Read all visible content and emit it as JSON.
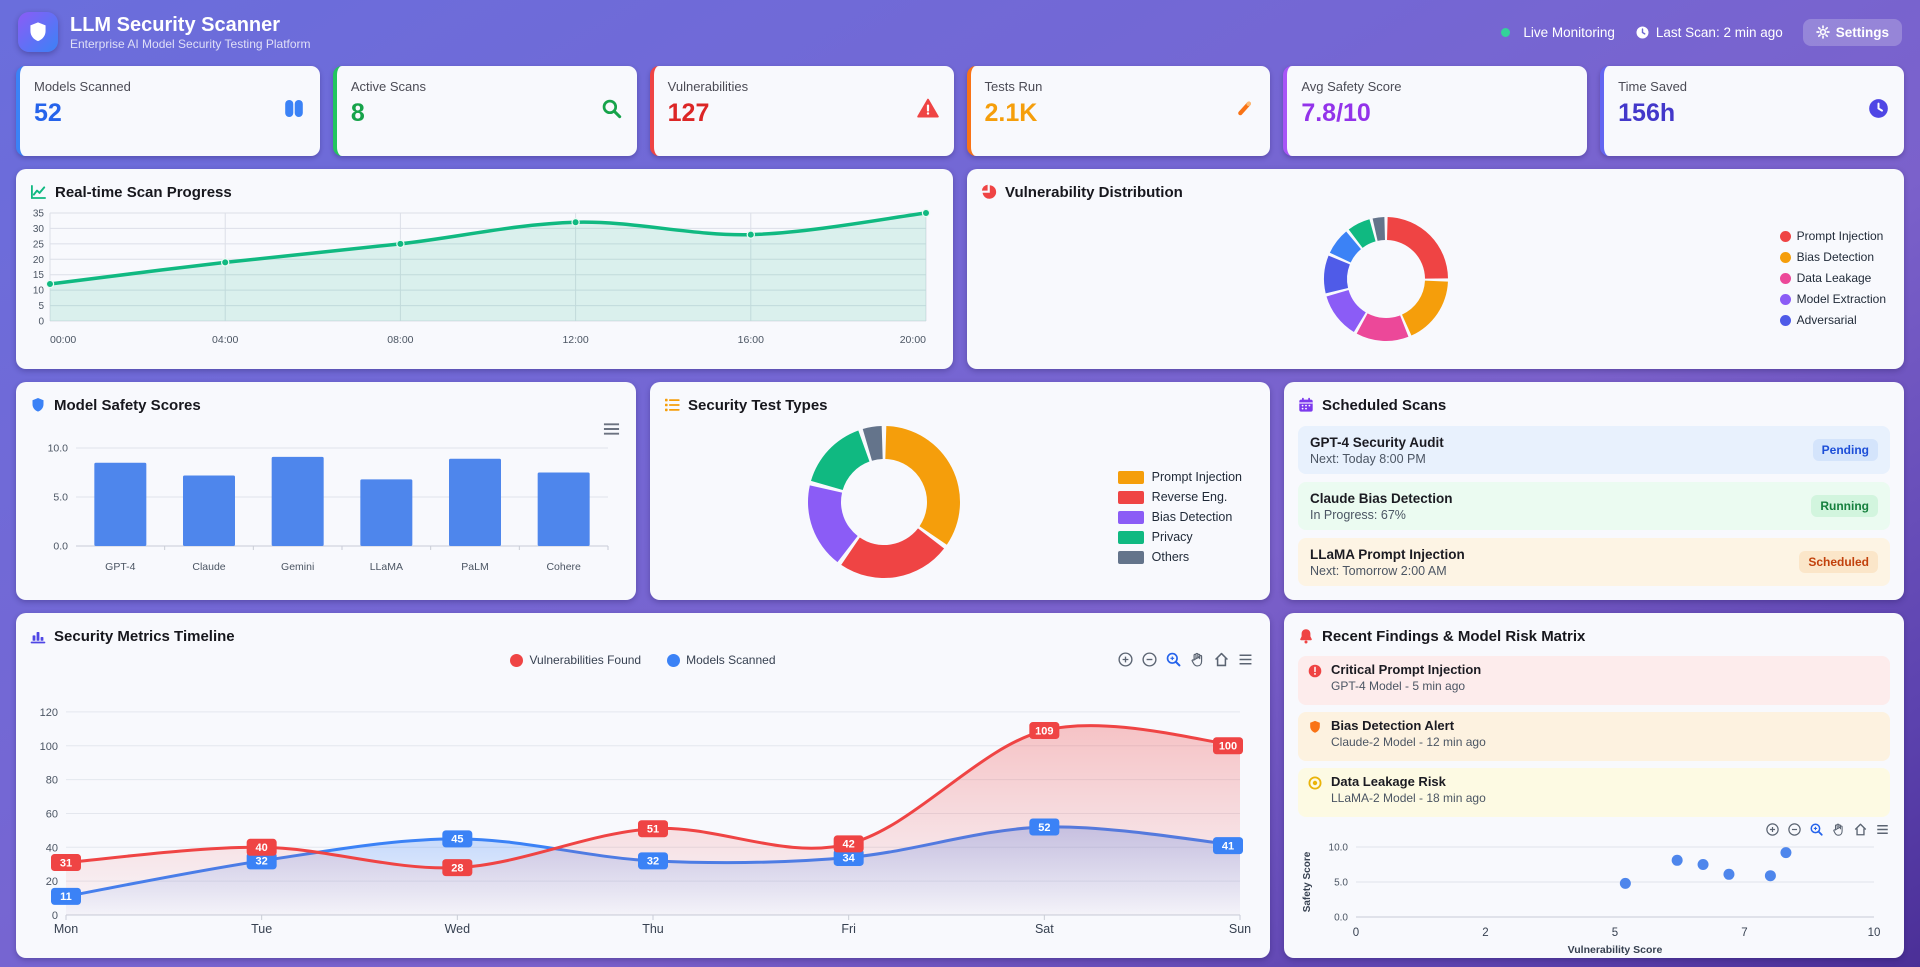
{
  "header": {
    "title": "LLM Security Scanner",
    "subtitle": "Enterprise AI Model Security Testing Platform",
    "live_label": "Live Monitoring",
    "last_scan": "Last Scan: 2 min ago",
    "settings_label": "Settings"
  },
  "stats": [
    {
      "label": "Models Scanned",
      "value": "52",
      "accent": "#2563eb"
    },
    {
      "label": "Active Scans",
      "value": "8",
      "accent": "#16a34a"
    },
    {
      "label": "Vulnerabilities",
      "value": "127",
      "accent": "#dc2626"
    },
    {
      "label": "Tests Run",
      "value": "2.1K",
      "accent": "#f59e0b"
    },
    {
      "label": "Avg Safety Score",
      "value": "7.8/10",
      "accent": "#9333ea"
    },
    {
      "label": "Time Saved",
      "value": "156h",
      "accent": "#4338ca"
    }
  ],
  "panels": {
    "scan": {
      "title": "Real-time Scan Progress"
    },
    "vuln": {
      "title": "Vulnerability Distribution"
    },
    "safety": {
      "title": "Model Safety Scores"
    },
    "tests": {
      "title": "Security Test Types"
    },
    "scheduled": {
      "title": "Scheduled Scans",
      "items": [
        {
          "name": "GPT-4 Security Audit",
          "detail": "Next: Today 8:00 PM",
          "status": "Pending"
        },
        {
          "name": "Claude Bias Detection",
          "detail": "In Progress: 67%",
          "status": "Running"
        },
        {
          "name": "LLaMA Prompt Injection",
          "detail": "Next: Tomorrow 2:00 AM",
          "status": "Scheduled"
        }
      ]
    },
    "timeline": {
      "title": "Security Metrics Timeline"
    },
    "findings": {
      "title": "Recent Findings & Model Risk Matrix",
      "items": [
        {
          "name": "Critical Prompt Injection",
          "detail": "GPT-4 Model - 5 min ago"
        },
        {
          "name": "Bias Detection Alert",
          "detail": "Claude-2 Model - 12 min ago"
        },
        {
          "name": "Data Leakage Risk",
          "detail": "LLaMA-2 Model - 18 min ago"
        }
      ]
    }
  },
  "chart_data": [
    {
      "id": "scan_progress",
      "type": "area",
      "x": [
        "00:00",
        "04:00",
        "08:00",
        "12:00",
        "16:00",
        "20:00"
      ],
      "values": [
        12,
        19,
        25,
        32,
        28,
        35
      ],
      "ylim": [
        0,
        35
      ],
      "yticks": [
        0,
        5,
        10,
        15,
        20,
        25,
        30,
        35
      ],
      "color": "#10b981",
      "grid": true
    },
    {
      "id": "vulnerability_distribution",
      "type": "pie",
      "donut": true,
      "legend_position": "right",
      "slices": [
        {
          "label": "Prompt Injection",
          "value": 26,
          "color": "#ef4444"
        },
        {
          "label": "Bias Detection",
          "value": 19,
          "color": "#f59e0b"
        },
        {
          "label": "Data Leakage",
          "value": 15,
          "color": "#ec4899"
        },
        {
          "label": "Model Extraction",
          "value": 13,
          "color": "#8b5cf6"
        },
        {
          "label": "Adversarial",
          "value": 11,
          "color": "#4f5be8"
        },
        {
          "label": "",
          "value": 8,
          "color": "#3b82f6"
        },
        {
          "label": "",
          "value": 7,
          "color": "#10b981"
        },
        {
          "label": "",
          "value": 4,
          "color": "#64748b"
        }
      ]
    },
    {
      "id": "model_safety",
      "type": "bar",
      "categories": [
        "GPT-4",
        "Claude",
        "Gemini",
        "LLaMA",
        "PaLM",
        "Cohere"
      ],
      "values": [
        8.5,
        7.2,
        9.1,
        6.8,
        8.9,
        7.5
      ],
      "ylim": [
        0,
        10
      ],
      "yticks": [
        0,
        5,
        10
      ],
      "color": "#4e86ec"
    },
    {
      "id": "test_types",
      "type": "pie",
      "donut": true,
      "legend_position": "right",
      "slices": [
        {
          "label": "Prompt Injection",
          "value": 35,
          "color": "#f59e0b"
        },
        {
          "label": "Reverse Eng.",
          "value": 25,
          "color": "#ef4444"
        },
        {
          "label": "Bias Detection",
          "value": 19,
          "color": "#8b5cf6"
        },
        {
          "label": "Privacy",
          "value": 16,
          "color": "#10b981"
        },
        {
          "label": "Others",
          "value": 5,
          "color": "#64748b"
        }
      ]
    },
    {
      "id": "metrics_timeline",
      "type": "line",
      "categories": [
        "Mon",
        "Tue",
        "Wed",
        "Thu",
        "Fri",
        "Sat",
        "Sun"
      ],
      "series": [
        {
          "name": "Models Scanned",
          "color": "#3b82f6",
          "values": [
            11,
            32,
            45,
            32,
            34,
            52,
            41
          ]
        },
        {
          "name": "Vulnerabilities Found",
          "color": "#ef4444",
          "values": [
            31,
            40,
            28,
            51,
            42,
            109,
            100
          ]
        }
      ],
      "legend_order": [
        "Vulnerabilities Found",
        "Models Scanned"
      ],
      "yticks": [
        0,
        20,
        40,
        60,
        80,
        100,
        120
      ],
      "ylim": [
        0,
        130
      ]
    },
    {
      "id": "risk_scatter",
      "type": "scatter",
      "xlabel": "Vulnerability Score",
      "ylabel": "Safety Score",
      "xtick_labels": [
        "0",
        "2",
        "5",
        "7",
        "10"
      ],
      "xlim": [
        0,
        10
      ],
      "yticks": [
        0,
        5,
        10
      ],
      "ylim": [
        0,
        10
      ],
      "points": [
        [
          5.2,
          4.8
        ],
        [
          6.2,
          8.1
        ],
        [
          6.7,
          7.5
        ],
        [
          7.2,
          6.1
        ],
        [
          8.0,
          5.9
        ],
        [
          8.3,
          9.2
        ]
      ],
      "color": "#4e86ec"
    }
  ]
}
